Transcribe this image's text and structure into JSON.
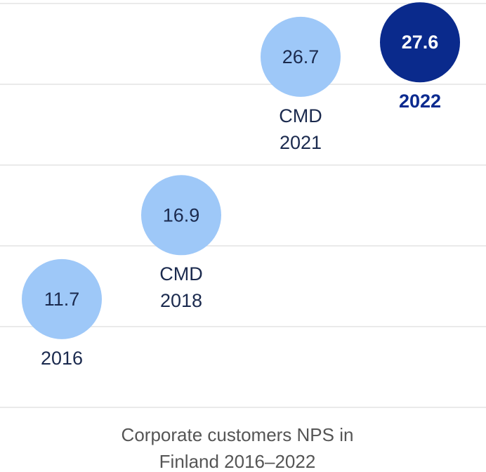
{
  "chart_data": {
    "type": "dot",
    "title": "Corporate customers NPS in\nFinland 2016–2022",
    "categories": [
      "2016",
      "CMD\n2018",
      "CMD\n2021",
      "2022"
    ],
    "values": [
      11.7,
      16.9,
      26.7,
      27.6
    ],
    "colors": [
      "#9ec8f8",
      "#9ec8f8",
      "#9ec8f8",
      "#0a2a8c"
    ],
    "highlight": 3,
    "ylim": [
      5,
      30
    ],
    "yticks": [
      5,
      10,
      15,
      20,
      25,
      30
    ],
    "grid": true
  }
}
